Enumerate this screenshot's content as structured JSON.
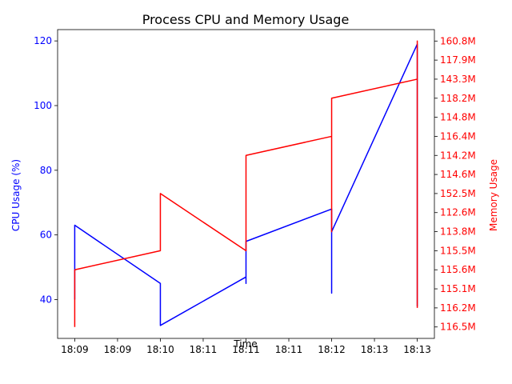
{
  "chart_data": {
    "type": "line",
    "title": "Process CPU and Memory Usage",
    "xlabel": "Time",
    "ylabel_left": "CPU Usage (%)",
    "ylabel_right": "Memory Usage",
    "x_tick_labels": [
      "18:09",
      "18:09",
      "18:10",
      "18:11",
      "18:11",
      "18:11",
      "18:12",
      "18:13",
      "18:13"
    ],
    "x_tick_positions": [
      0,
      0.5,
      1,
      1.5,
      2,
      2.5,
      3,
      3.5,
      4
    ],
    "xlim": [
      -0.2,
      4.2
    ],
    "y_left_ticks": [
      40,
      60,
      80,
      100,
      120
    ],
    "y_left_lim": [
      28,
      123.5
    ],
    "y_right_categories": [
      "116.5M",
      "116.2M",
      "115.1M",
      "115.6M",
      "115.5M",
      "113.8M",
      "112.6M",
      "152.5M",
      "114.6M",
      "114.2M",
      "116.4M",
      "114.8M",
      "118.2M",
      "143.3M",
      "117.9M",
      "160.8M"
    ],
    "y_right_lim": [
      -0.6,
      15.6
    ],
    "colors": {
      "cpu": "#0000ff",
      "memory": "#ff0000"
    },
    "grid": false,
    "series": [
      {
        "key": "cpu",
        "values": [
          [
            0,
            40
          ],
          [
            0,
            63
          ],
          [
            1,
            45
          ],
          [
            1,
            32
          ],
          [
            2,
            47
          ],
          [
            2,
            45
          ],
          [
            2,
            58
          ],
          [
            3,
            68
          ],
          [
            3,
            42
          ],
          [
            3,
            61
          ],
          [
            4,
            119
          ],
          [
            4,
            113
          ],
          [
            4,
            38
          ],
          [
            4,
            44
          ],
          [
            4,
            41
          ]
        ]
      },
      {
        "key": "memory",
        "values": [
          [
            0,
            0
          ],
          [
            0,
            3
          ],
          [
            1,
            4
          ],
          [
            1,
            7
          ],
          [
            2,
            4
          ],
          [
            2,
            9
          ],
          [
            3,
            10
          ],
          [
            3,
            5
          ],
          [
            3,
            12
          ],
          [
            4,
            13
          ],
          [
            4,
            15
          ],
          [
            4,
            14
          ],
          [
            4,
            2
          ],
          [
            4,
            1
          ]
        ]
      }
    ]
  }
}
